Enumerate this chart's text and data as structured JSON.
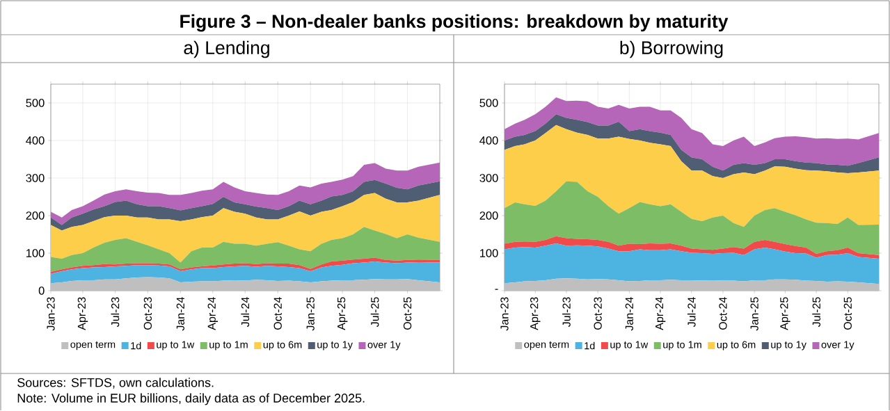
{
  "chart_data": [
    {
      "type": "area",
      "title": "Figure 3 – Non-dealer banks positions: breakdown by maturity",
      "subtitle": "a) Lending",
      "stacked": true,
      "grid": true,
      "legend": "bottom",
      "annotations": [
        "Sources: SFTDS, own calculations.",
        "Note: Volume in EUR billions, daily data as of December 2025."
      ],
      "x": [
        "2023-01",
        "2023-02",
        "2023-03",
        "2023-04",
        "2023-05",
        "2023-06",
        "2023-07",
        "2023-08",
        "2023-09",
        "2023-10",
        "2023-11",
        "2023-12",
        "2024-01",
        "2024-02",
        "2024-03",
        "2024-04",
        "2024-05",
        "2024-06",
        "2024-07",
        "2024-08",
        "2024-09",
        "2024-10",
        "2024-11",
        "2024-12",
        "2025-01",
        "2025-02",
        "2025-03",
        "2025-04",
        "2025-05",
        "2025-06",
        "2025-07",
        "2025-08",
        "2025-09",
        "2025-10",
        "2025-11",
        "2025-12-31"
      ],
      "xlim": [
        "2023-01-01",
        "2025-12-31"
      ],
      "xticks": [
        {
          "value": "2023-01",
          "label": "Jan-23"
        },
        {
          "value": "2023-04",
          "label": "Apr-23"
        },
        {
          "value": "2023-07",
          "label": "Jul-23"
        },
        {
          "value": "2023-10",
          "label": "Oct-23"
        },
        {
          "value": "2024-01",
          "label": "Jan-24"
        },
        {
          "value": "2024-04",
          "label": "Apr-24"
        },
        {
          "value": "2024-07",
          "label": "Jul-24"
        },
        {
          "value": "2024-10",
          "label": "Oct-24"
        },
        {
          "value": "2025-01",
          "label": "Jan-25"
        },
        {
          "value": "2025-04",
          "label": "Apr-25"
        },
        {
          "value": "2025-07",
          "label": "Jul-25"
        },
        {
          "value": "2025-10",
          "label": "Oct-25"
        }
      ],
      "ylim": [
        0,
        550
      ],
      "yticks": [
        0,
        100,
        200,
        300,
        400,
        500
      ],
      "series": [
        {
          "name": "open term",
          "color": "#bfbfbf",
          "values": [
            20,
            22,
            26,
            28,
            28,
            30,
            30,
            33,
            35,
            36,
            35,
            33,
            22,
            24,
            25,
            25,
            27,
            28,
            27,
            29,
            28,
            26,
            27,
            25,
            22,
            25,
            27,
            28,
            28,
            29,
            31,
            30,
            30,
            31,
            28,
            22
          ]
        },
        {
          "name": "1d",
          "color": "#4db3e0",
          "values": [
            25,
            30,
            31,
            32,
            34,
            33,
            35,
            33,
            33,
            32,
            32,
            32,
            30,
            33,
            35,
            35,
            36,
            37,
            39,
            35,
            38,
            39,
            36,
            35,
            30,
            37,
            39,
            41,
            45,
            46,
            47,
            45,
            43,
            44,
            48,
            53
          ]
        },
        {
          "name": "up to 1w",
          "color": "#f04a4a",
          "values": [
            5,
            5,
            5,
            6,
            6,
            8,
            5,
            6,
            5,
            5,
            5,
            5,
            5,
            5,
            5,
            7,
            7,
            7,
            7,
            7,
            7,
            7,
            9,
            8,
            6,
            8,
            12,
            11,
            10,
            10,
            10,
            7,
            7,
            7,
            7,
            7
          ]
        },
        {
          "name": "up to 1m",
          "color": "#7dbd66",
          "values": [
            40,
            28,
            33,
            34,
            47,
            57,
            65,
            68,
            57,
            48,
            38,
            30,
            18,
            43,
            50,
            48,
            60,
            53,
            52,
            49,
            52,
            57,
            48,
            42,
            47,
            55,
            57,
            60,
            67,
            85,
            72,
            69,
            60,
            68,
            58,
            48
          ]
        },
        {
          "name": "up to 6m",
          "color": "#fcce49",
          "values": [
            85,
            75,
            75,
            75,
            70,
            68,
            65,
            60,
            65,
            74,
            80,
            90,
            110,
            85,
            81,
            85,
            90,
            85,
            80,
            75,
            65,
            61,
            80,
            101,
            95,
            85,
            80,
            85,
            86,
            85,
            100,
            94,
            95,
            85,
            99,
            125
          ]
        },
        {
          "name": "up to 1y",
          "color": "#4f5e73",
          "values": [
            20,
            15,
            25,
            30,
            31,
            29,
            36,
            40,
            35,
            30,
            35,
            30,
            29,
            30,
            29,
            31,
            30,
            25,
            25,
            29,
            30,
            25,
            25,
            29,
            30,
            30,
            36,
            30,
            29,
            35,
            35,
            40,
            39,
            35,
            40,
            36
          ]
        },
        {
          "name": "over 1y",
          "color": "#b566b8",
          "values": [
            15,
            20,
            20,
            20,
            24,
            31,
            29,
            30,
            35,
            36,
            35,
            35,
            41,
            40,
            41,
            39,
            40,
            40,
            35,
            36,
            36,
            40,
            40,
            40,
            45,
            45,
            39,
            41,
            40,
            45,
            45,
            40,
            46,
            50,
            50,
            50
          ]
        }
      ]
    },
    {
      "type": "area",
      "subtitle": "b) Borrowing",
      "stacked": true,
      "grid": true,
      "legend": "bottom",
      "x": [
        "2023-01",
        "2023-02",
        "2023-03",
        "2023-04",
        "2023-05",
        "2023-06",
        "2023-07",
        "2023-08",
        "2023-09",
        "2023-10",
        "2023-11",
        "2023-12",
        "2024-01",
        "2024-02",
        "2024-03",
        "2024-04",
        "2024-05",
        "2024-06",
        "2024-07",
        "2024-08",
        "2024-09",
        "2024-10",
        "2024-11",
        "2024-12",
        "2025-01",
        "2025-02",
        "2025-03",
        "2025-04",
        "2025-05",
        "2025-06",
        "2025-07",
        "2025-08",
        "2025-09",
        "2025-10",
        "2025-11",
        "2025-12-31"
      ],
      "xlim": [
        "2023-01-01",
        "2025-12-31"
      ],
      "xticks": [
        {
          "value": "2023-01",
          "label": "Jan-23"
        },
        {
          "value": "2023-04",
          "label": "Apr-23"
        },
        {
          "value": "2023-07",
          "label": "Jul-23"
        },
        {
          "value": "2023-10",
          "label": "Oct-23"
        },
        {
          "value": "2024-01",
          "label": "Jan-24"
        },
        {
          "value": "2024-04",
          "label": "Apr-24"
        },
        {
          "value": "2024-07",
          "label": "Jul-24"
        },
        {
          "value": "2024-10",
          "label": "Oct-24"
        },
        {
          "value": "2025-01",
          "label": "Jan-25"
        },
        {
          "value": "2025-04",
          "label": "Apr-25"
        },
        {
          "value": "2025-07",
          "label": "Jul-25"
        },
        {
          "value": "2025-10",
          "label": "Oct-25"
        }
      ],
      "ylim": [
        0,
        550
      ],
      "yticks": [
        {
          "value": 0,
          "label": "-"
        },
        100,
        200,
        300,
        400,
        500
      ],
      "series": [
        {
          "name": "open term",
          "color": "#bfbfbf",
          "values": [
            20,
            22,
            25,
            26,
            28,
            32,
            33,
            32,
            30,
            31,
            30,
            28,
            25,
            26,
            28,
            28,
            29,
            28,
            28,
            27,
            28,
            27,
            27,
            25,
            28,
            28,
            30,
            30,
            29,
            27,
            26,
            24,
            25,
            24,
            22,
            18
          ]
        },
        {
          "name": "1d",
          "color": "#4db3e0",
          "values": [
            90,
            93,
            91,
            89,
            92,
            94,
            87,
            89,
            90,
            87,
            82,
            77,
            80,
            84,
            80,
            80,
            81,
            77,
            73,
            73,
            70,
            73,
            74,
            70,
            82,
            87,
            80,
            74,
            71,
            72,
            62,
            71,
            71,
            76,
            68,
            67
          ]
        },
        {
          "name": "up to 1w",
          "color": "#f04a4a",
          "values": [
            15,
            15,
            15,
            15,
            15,
            19,
            20,
            17,
            17,
            17,
            18,
            15,
            20,
            14,
            18,
            17,
            16,
            15,
            11,
            10,
            11,
            12,
            15,
            17,
            20,
            20,
            20,
            20,
            19,
            16,
            10,
            10,
            12,
            15,
            10,
            10
          ]
        },
        {
          "name": "up to 1m",
          "color": "#7dbd66",
          "values": [
            95,
            105,
            99,
            96,
            105,
            120,
            151,
            152,
            128,
            115,
            95,
            85,
            95,
            112,
            104,
            100,
            104,
            90,
            79,
            75,
            86,
            88,
            64,
            58,
            70,
            80,
            90,
            86,
            82,
            75,
            83,
            75,
            70,
            80,
            75,
            81
          ]
        },
        {
          "name": "up to 6m",
          "color": "#fcce49",
          "values": [
            155,
            150,
            160,
            174,
            180,
            176,
            139,
            131,
            150,
            155,
            180,
            205,
            184,
            164,
            164,
            165,
            155,
            135,
            129,
            135,
            110,
            100,
            130,
            145,
            110,
            105,
            111,
            120,
            124,
            131,
            139,
            138,
            137,
            118,
            140,
            144
          ]
        },
        {
          "name": "up to 1y",
          "color": "#4f5e73",
          "values": [
            25,
            25,
            25,
            25,
            25,
            29,
            30,
            34,
            34,
            35,
            35,
            40,
            21,
            30,
            31,
            31,
            30,
            30,
            35,
            30,
            25,
            20,
            25,
            25,
            25,
            20,
            19,
            20,
            20,
            20,
            20,
            18,
            20,
            20,
            25,
            35
          ]
        },
        {
          "name": "over 1y",
          "color": "#b566b8",
          "values": [
            30,
            35,
            40,
            45,
            45,
            45,
            45,
            51,
            55,
            50,
            45,
            45,
            60,
            60,
            65,
            59,
            65,
            85,
            75,
            70,
            60,
            65,
            65,
            70,
            50,
            55,
            56,
            60,
            66,
            68,
            65,
            70,
            69,
            72,
            63,
            65
          ]
        }
      ]
    }
  ]
}
